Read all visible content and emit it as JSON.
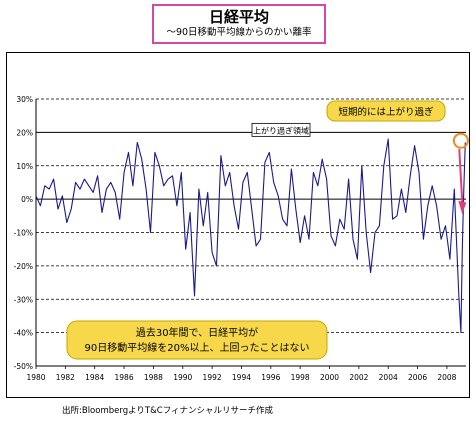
{
  "title": "日経平均",
  "subtitle": "～90日移動平均線からのかい離率",
  "source": "出所:BloombergよりT&Cフィナンシャルリサーチ作成",
  "annotations": {
    "threshold_label": "上がり過ぎ領域",
    "short_term_label": "短期的には上がり過ぎ",
    "note_line1": "過去30年間で、日経平均が",
    "note_line2": "90日移動平均線を20%以上、上回ったことはない"
  },
  "colors": {
    "series": "#1a1a8c",
    "title_border": "#d24aa8",
    "callout_fill": "#f7d84a",
    "callout_border": "#c9a400",
    "marker": "#f08a24",
    "arrow": "#e0407a"
  },
  "chart_data": {
    "type": "line",
    "title": "日経平均",
    "subtitle": "～90日移動平均線からのかい離率",
    "xlabel": "",
    "ylabel": "",
    "xlim": [
      1980,
      2009.3
    ],
    "ylim": [
      -50,
      30
    ],
    "x_ticks": [
      1980,
      1982,
      1984,
      1986,
      1988,
      1990,
      1992,
      1994,
      1996,
      1998,
      2000,
      2002,
      2004,
      2006,
      2008
    ],
    "x_tick_labels": [
      "1980",
      "1982",
      "1984",
      "1986",
      "1988",
      "1990",
      "1992",
      "1994",
      "1996",
      "1998",
      "2000",
      "2002",
      "2004",
      "2006",
      "2008"
    ],
    "y_ticks": [
      30,
      20,
      10,
      0,
      -10,
      -20,
      -30,
      -40,
      -50
    ],
    "y_tick_labels": [
      "30%",
      "20%",
      "10%",
      "0%",
      "-10%",
      "-20%",
      "-30%",
      "-40%",
      "-50%"
    ],
    "grid": "horizontal dashed",
    "reference_lines": [
      {
        "y": 0,
        "style": "solid"
      },
      {
        "y": 20,
        "style": "solid"
      }
    ],
    "series": [
      {
        "x": [
          1980.0,
          1980.3,
          1980.6,
          1980.9,
          1981.2,
          1981.5,
          1981.8,
          1982.1,
          1982.4,
          1982.7,
          1983.0,
          1983.3,
          1983.6,
          1983.9,
          1984.2,
          1984.5,
          1984.8,
          1985.1,
          1985.4,
          1985.7,
          1986.0,
          1986.3,
          1986.6,
          1986.9,
          1987.2,
          1987.5,
          1987.8,
          1988.1,
          1988.4,
          1988.7,
          1989.0,
          1989.3,
          1989.6,
          1989.9,
          1990.2,
          1990.5,
          1990.8,
          1991.1,
          1991.4,
          1991.7,
          1992.0,
          1992.3,
          1992.6,
          1992.9,
          1993.2,
          1993.5,
          1993.8,
          1994.1,
          1994.4,
          1994.7,
          1995.0,
          1995.3,
          1995.6,
          1995.9,
          1996.2,
          1996.5,
          1996.8,
          1997.1,
          1997.4,
          1997.7,
          1998.0,
          1998.3,
          1998.6,
          1998.9,
          1999.2,
          1999.5,
          1999.8,
          2000.1,
          2000.4,
          2000.7,
          2001.0,
          2001.3,
          2001.6,
          2001.9,
          2002.2,
          2002.5,
          2002.8,
          2003.1,
          2003.4,
          2003.7,
          2004.0,
          2004.3,
          2004.6,
          2004.9,
          2005.2,
          2005.5,
          2005.8,
          2006.1,
          2006.4,
          2006.7,
          2007.0,
          2007.3,
          2007.6,
          2007.9,
          2008.2,
          2008.5,
          2008.8,
          2008.95,
          2009.05,
          2009.15,
          2009.25
        ],
        "values": [
          1,
          -2,
          4,
          3,
          6,
          -3,
          1,
          -7,
          -3,
          5,
          3,
          6,
          4,
          2,
          7,
          -4,
          3,
          5,
          2,
          -6,
          8,
          14,
          4,
          17,
          12,
          3,
          -10,
          14,
          10,
          4,
          6,
          7,
          -2,
          8,
          -15,
          -4,
          -29,
          3,
          -8,
          2,
          -16,
          -20,
          13,
          4,
          8,
          -2,
          -9,
          5,
          8,
          -3,
          -14,
          -12,
          11,
          14,
          5,
          1,
          -6,
          -8,
          9,
          -3,
          -13,
          -5,
          -12,
          8,
          4,
          12,
          6,
          -11,
          -14,
          -6,
          -9,
          6,
          -12,
          -18,
          10,
          -10,
          -22,
          -10,
          -8,
          10,
          18,
          -6,
          -5,
          3,
          -4,
          7,
          16,
          8,
          -12,
          -2,
          4,
          -2,
          -12,
          -8,
          -18,
          3,
          -28,
          -40,
          -15,
          3,
          17
        ]
      }
    ]
  }
}
